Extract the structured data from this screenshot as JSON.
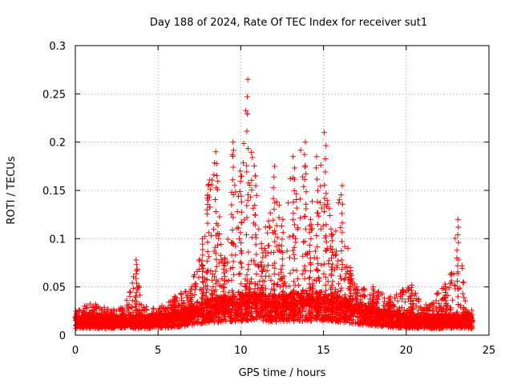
{
  "chart_data": {
    "type": "scatter",
    "title": "Day 188 of 2024, Rate Of TEC Index for receiver sut1",
    "xlabel": "GPS time / hours",
    "ylabel": "ROTI / TECUs",
    "xlim": [
      0,
      25
    ],
    "ylim": [
      0,
      0.3
    ],
    "xticks": [
      0,
      5,
      10,
      15,
      20,
      25
    ],
    "yticks": [
      0,
      0.05,
      0.1,
      0.15,
      0.2,
      0.25,
      0.3
    ],
    "xtick_labels": [
      "0",
      "5",
      "10",
      "15",
      "20",
      "25"
    ],
    "ytick_labels": [
      "0",
      "0.05",
      "0.1",
      "0.15",
      "0.2",
      "0.25",
      "0.3"
    ],
    "grid": true,
    "marker": "+",
    "color": "#ff0000",
    "series": [
      {
        "name": "sut1",
        "x_range": [
          0,
          24
        ],
        "baseline_level": [
          [
            0,
            0.015
          ],
          [
            1,
            0.016
          ],
          [
            2,
            0.015
          ],
          [
            3,
            0.016
          ],
          [
            4,
            0.015
          ],
          [
            5,
            0.016
          ],
          [
            6,
            0.018
          ],
          [
            7,
            0.022
          ],
          [
            8,
            0.028
          ],
          [
            9,
            0.03
          ],
          [
            10,
            0.032
          ],
          [
            11,
            0.033
          ],
          [
            12,
            0.03
          ],
          [
            13,
            0.032
          ],
          [
            14,
            0.033
          ],
          [
            15,
            0.033
          ],
          [
            16,
            0.03
          ],
          [
            17,
            0.025
          ],
          [
            18,
            0.022
          ],
          [
            19,
            0.018
          ],
          [
            20,
            0.016
          ],
          [
            21,
            0.015
          ],
          [
            22,
            0.015
          ],
          [
            23,
            0.016
          ],
          [
            24,
            0.015
          ]
        ],
        "envelope_max": [
          [
            0,
            0.025
          ],
          [
            1,
            0.035
          ],
          [
            2,
            0.028
          ],
          [
            3,
            0.03
          ],
          [
            3.7,
            0.078
          ],
          [
            4,
            0.03
          ],
          [
            5,
            0.028
          ],
          [
            6,
            0.04
          ],
          [
            7,
            0.05
          ],
          [
            7.7,
            0.1
          ],
          [
            8,
            0.155
          ],
          [
            8.5,
            0.19
          ],
          [
            9,
            0.08
          ],
          [
            9.5,
            0.2
          ],
          [
            10,
            0.17
          ],
          [
            10.4,
            0.265
          ],
          [
            10.9,
            0.165
          ],
          [
            11.3,
            0.095
          ],
          [
            12,
            0.175
          ],
          [
            12.5,
            0.12
          ],
          [
            13.2,
            0.185
          ],
          [
            13.9,
            0.2
          ],
          [
            14.2,
            0.12
          ],
          [
            14.6,
            0.185
          ],
          [
            15.1,
            0.21
          ],
          [
            15.5,
            0.11
          ],
          [
            16.1,
            0.155
          ],
          [
            16.6,
            0.07
          ],
          [
            17,
            0.05
          ],
          [
            18,
            0.05
          ],
          [
            19,
            0.04
          ],
          [
            20.3,
            0.052
          ],
          [
            21,
            0.03
          ],
          [
            22.4,
            0.053
          ],
          [
            23.1,
            0.12
          ],
          [
            23.6,
            0.035
          ],
          [
            24,
            0.025
          ]
        ]
      }
    ]
  }
}
